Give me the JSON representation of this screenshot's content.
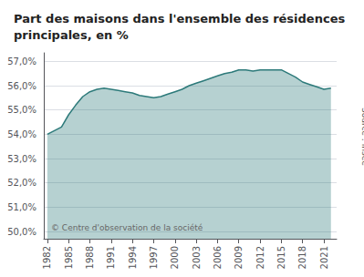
{
  "chart_data": {
    "type": "area",
    "title": "Part des maisons dans l'ensemble des résidences\nprincipales, en %",
    "x": [
      1982,
      1984,
      1985,
      1986,
      1987,
      1988,
      1989,
      1990,
      1991,
      1992,
      1993,
      1994,
      1995,
      1996,
      1997,
      1998,
      1999,
      2000,
      2001,
      2002,
      2003,
      2004,
      2005,
      2006,
      2007,
      2008,
      2009,
      2010,
      2011,
      2012,
      2013,
      2014,
      2015,
      2016,
      2017,
      2018,
      2019,
      2020,
      2021,
      2022
    ],
    "values": [
      54.0,
      54.3,
      54.8,
      55.2,
      55.55,
      55.75,
      55.85,
      55.9,
      55.85,
      55.8,
      55.75,
      55.7,
      55.6,
      55.55,
      55.5,
      55.55,
      55.65,
      55.75,
      55.85,
      56.0,
      56.1,
      56.2,
      56.3,
      56.4,
      56.5,
      56.55,
      56.65,
      56.65,
      56.6,
      56.65,
      56.65,
      56.65,
      56.65,
      56.5,
      56.35,
      56.15,
      56.05,
      55.95,
      55.85,
      55.9
    ],
    "color": "#2d7a7a",
    "xlim": [
      1981.5,
      2022.8
    ],
    "xticks": [
      1982,
      1985,
      1988,
      1991,
      1994,
      1997,
      2000,
      2003,
      2006,
      2009,
      2012,
      2015,
      2018,
      2021
    ],
    "ylim": [
      49.7,
      57.35
    ],
    "yticks": [
      {
        "value": 50.0,
        "label": "50,0%"
      },
      {
        "value": 51.0,
        "label": "51,0%"
      },
      {
        "value": 52.0,
        "label": "52,0%"
      },
      {
        "value": 53.0,
        "label": "53,0%"
      },
      {
        "value": 54.0,
        "label": "54,0%"
      },
      {
        "value": 55.0,
        "label": "55,0%"
      },
      {
        "value": 56.0,
        "label": "56,0%"
      },
      {
        "value": 57.0,
        "label": "57,0%"
      }
    ],
    "grid": true,
    "annotations": [
      "© Centre d'observation de la société",
      "Source : Insee"
    ]
  }
}
